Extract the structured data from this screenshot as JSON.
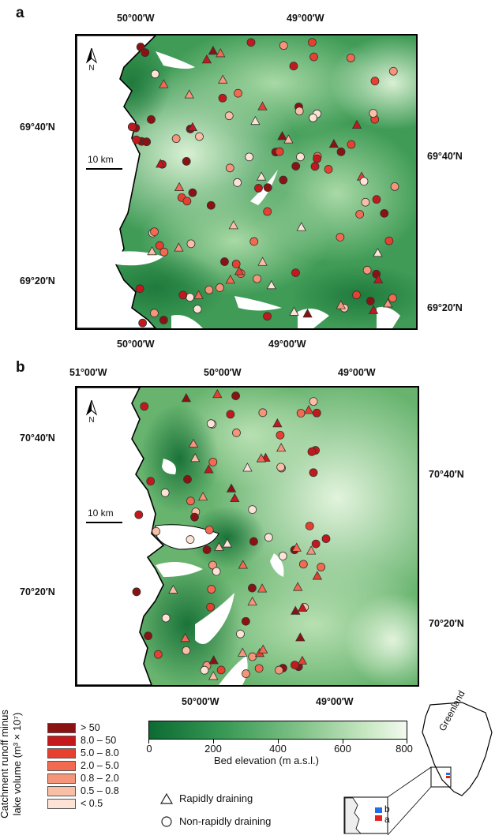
{
  "panel_a": {
    "letter": "a",
    "lon_top": [
      "50°00′W",
      "49°00′W"
    ],
    "lon_bottom": [
      "50°00′W",
      "49°00′W"
    ],
    "lat_left": [
      "69°40′N",
      "69°20′N"
    ],
    "lat_right": [
      "69°40′N",
      "69°20′N"
    ],
    "scale_label": "10 km",
    "north_label": "N"
  },
  "panel_b": {
    "letter": "b",
    "lon_top": [
      "51°00′W",
      "50°00′W",
      "49°00′W"
    ],
    "lon_bottom": [
      "50°00′W",
      "49°00′W"
    ],
    "lat_left": [
      "70°40′N",
      "70°20′N"
    ],
    "lat_right": [
      "70°40′N",
      "70°20′N"
    ],
    "scale_label": "10 km",
    "north_label": "N"
  },
  "legend": {
    "title_line1": "Catchment runoff minus",
    "title_line2": "lake volume (m³ × 10⁷)",
    "classes": [
      {
        "label": "> 50",
        "color": "#8b1212"
      },
      {
        "label": "8.0 – 50",
        "color": "#c4191c"
      },
      {
        "label": "5.0 – 8.0",
        "color": "#e8402f"
      },
      {
        "label": "2.0 – 5.0",
        "color": "#f26a4f"
      },
      {
        "label": "0.8 – 2.0",
        "color": "#f5957a"
      },
      {
        "label": "0.5 – 0.8",
        "color": "#f9bfa6"
      },
      {
        "label": "< 0.5",
        "color": "#fde3d6"
      }
    ],
    "symbols": {
      "triangle": "Rapidly draining",
      "circle": "Non-rapidly draining"
    }
  },
  "colorbar": {
    "title": "Bed elevation (m a.s.l.)",
    "ticks": [
      "0",
      "200",
      "400",
      "600",
      "800"
    ],
    "range": [
      0,
      800
    ],
    "colors": [
      "#0b6b32",
      "#f2faef"
    ]
  },
  "inset": {
    "greenland_label": "Greenland",
    "box_labels": [
      "b",
      "a"
    ],
    "box_colors": [
      "#1e6fe8",
      "#e8231e"
    ]
  }
}
